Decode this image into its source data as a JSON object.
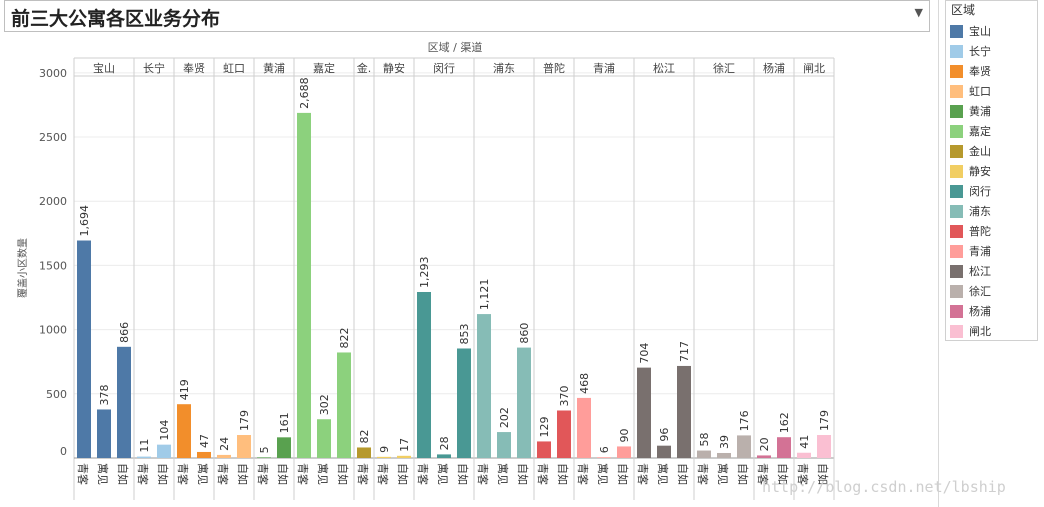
{
  "title": "前三大公寓各区业务分布",
  "watermark": "http://blog.csdn.net/lbship",
  "legend_title": "区域",
  "chart_data": {
    "type": "bar",
    "title": "前三大公寓各区业务分布",
    "header_label": "区域 / 渠道",
    "ylabel": "覆盖小区数量",
    "ylim": [
      0,
      3100
    ],
    "yticks": [
      0,
      500,
      1000,
      1500,
      2000,
      2500,
      3000
    ],
    "grid": true,
    "legend_position": "right",
    "groups": [
      {
        "name": "宝山",
        "color": "#4e79a7",
        "bars": [
          {
            "channel": "青客",
            "value": 1694,
            "label": "1,694"
          },
          {
            "channel": "寓见",
            "value": 378,
            "label": "378"
          },
          {
            "channel": "自如",
            "value": 866,
            "label": "866"
          }
        ]
      },
      {
        "name": "长宁",
        "color": "#a0cbe8",
        "bars": [
          {
            "channel": "青客",
            "value": 11,
            "label": "11"
          },
          {
            "channel": "自如",
            "value": 104,
            "label": "104"
          }
        ]
      },
      {
        "name": "奉贤",
        "color": "#f28e2b",
        "bars": [
          {
            "channel": "青客",
            "value": 419,
            "label": "419"
          },
          {
            "channel": "寓见",
            "value": 47,
            "label": "47"
          }
        ]
      },
      {
        "name": "虹口",
        "color": "#ffbe7d",
        "bars": [
          {
            "channel": "青客",
            "value": 24,
            "label": "24"
          },
          {
            "channel": "自如",
            "value": 179,
            "label": "179"
          }
        ]
      },
      {
        "name": "黄浦",
        "color": "#59a14f",
        "bars": [
          {
            "channel": "青客",
            "value": 5,
            "label": "5"
          },
          {
            "channel": "自如",
            "value": 161,
            "label": "161"
          }
        ]
      },
      {
        "name": "嘉定",
        "color": "#8cd17d",
        "bars": [
          {
            "channel": "青客",
            "value": 2688,
            "label": "2,688"
          },
          {
            "channel": "寓见",
            "value": 302,
            "label": "302"
          },
          {
            "channel": "自如",
            "value": 822,
            "label": "822"
          }
        ]
      },
      {
        "name": "金山",
        "header": "金.",
        "color": "#b6992d",
        "bars": [
          {
            "channel": "青客",
            "value": 82,
            "label": "82"
          }
        ]
      },
      {
        "name": "静安",
        "color": "#f1ce63",
        "bars": [
          {
            "channel": "青客",
            "value": 9,
            "label": "9"
          },
          {
            "channel": "自如",
            "value": 17,
            "label": "17"
          }
        ]
      },
      {
        "name": "闵行",
        "color": "#499894",
        "bars": [
          {
            "channel": "青客",
            "value": 1293,
            "label": "1,293"
          },
          {
            "channel": "寓见",
            "value": 28,
            "label": "28"
          },
          {
            "channel": "自如",
            "value": 853,
            "label": "853"
          }
        ]
      },
      {
        "name": "浦东",
        "color": "#86bcb6",
        "bars": [
          {
            "channel": "青客",
            "value": 1121,
            "label": "1,121"
          },
          {
            "channel": "寓见",
            "value": 202,
            "label": "202"
          },
          {
            "channel": "自如",
            "value": 860,
            "label": "860"
          }
        ]
      },
      {
        "name": "普陀",
        "color": "#e15759",
        "bars": [
          {
            "channel": "青客",
            "value": 129,
            "label": "129"
          },
          {
            "channel": "自如",
            "value": 370,
            "label": "370"
          }
        ]
      },
      {
        "name": "青浦",
        "color": "#ff9d9a",
        "bars": [
          {
            "channel": "青客",
            "value": 468,
            "label": "468"
          },
          {
            "channel": "寓见",
            "value": 6,
            "label": "6"
          },
          {
            "channel": "自如",
            "value": 90,
            "label": "90"
          }
        ]
      },
      {
        "name": "松江",
        "color": "#79706e",
        "bars": [
          {
            "channel": "青客",
            "value": 704,
            "label": "704"
          },
          {
            "channel": "寓见",
            "value": 96,
            "label": "96"
          },
          {
            "channel": "自如",
            "value": 717,
            "label": "717"
          }
        ]
      },
      {
        "name": "徐汇",
        "color": "#bab0ac",
        "bars": [
          {
            "channel": "青客",
            "value": 58,
            "label": "58"
          },
          {
            "channel": "寓见",
            "value": 39,
            "label": "39"
          },
          {
            "channel": "自如",
            "value": 176,
            "label": "176"
          }
        ]
      },
      {
        "name": "杨浦",
        "color": "#d37295",
        "bars": [
          {
            "channel": "青客",
            "value": 20,
            "label": "20"
          },
          {
            "channel": "自如",
            "value": 162,
            "label": "162"
          }
        ]
      },
      {
        "name": "闸北",
        "color": "#fabfd2",
        "bars": [
          {
            "channel": "青客",
            "value": 41,
            "label": "41"
          },
          {
            "channel": "自如",
            "value": 179,
            "label": "179"
          }
        ]
      }
    ]
  }
}
